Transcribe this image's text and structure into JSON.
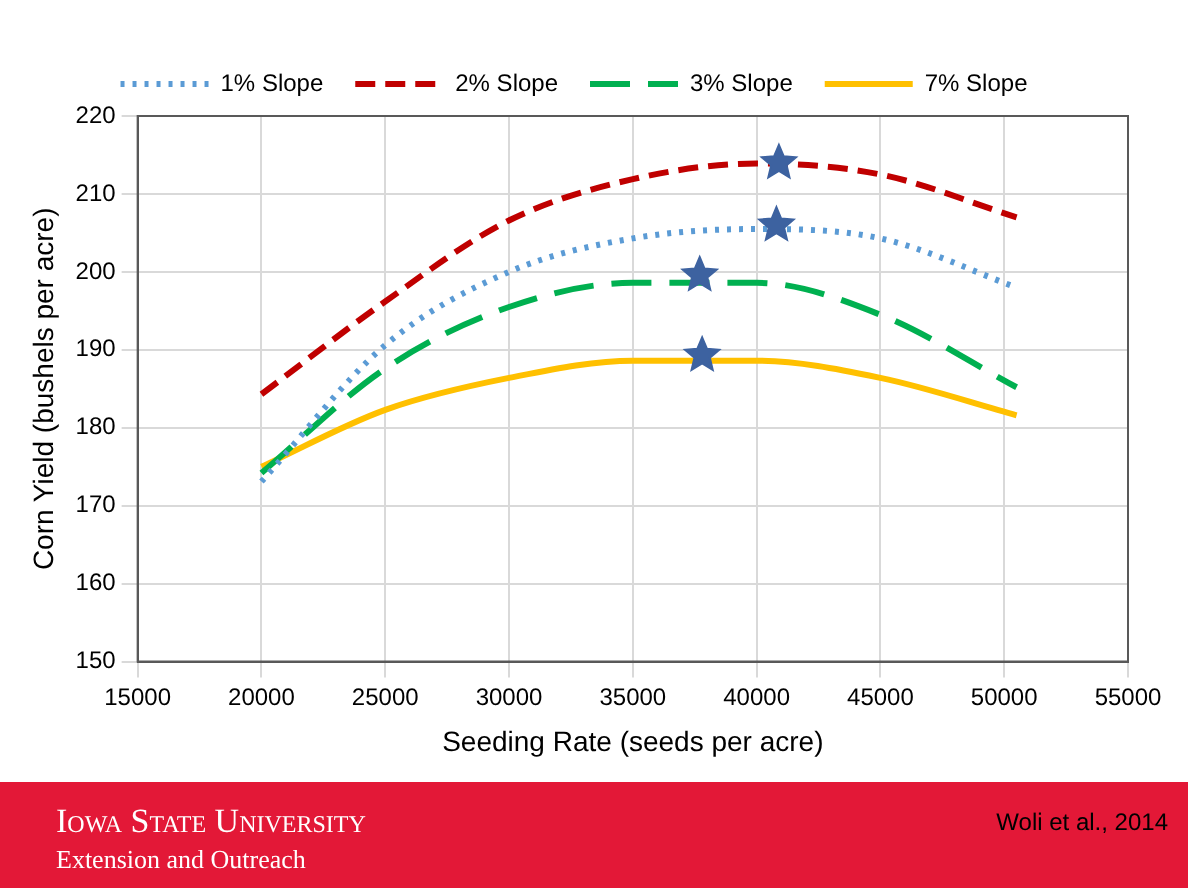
{
  "chart_data": {
    "type": "line",
    "xlabel": "Seeding Rate (seeds per acre)",
    "ylabel": "Corn Yield (bushels per acre)",
    "x": [
      20000,
      25000,
      30000,
      35000,
      40000,
      45000,
      50500
    ],
    "series": [
      {
        "name": "1% Slope",
        "color": "#5b9bd5",
        "line_style": "dotted",
        "values": [
          173.1,
          190.6,
          200,
          204.3,
          205.5,
          204.3,
          198
        ]
      },
      {
        "name": "2% Slope",
        "color": "#c00000",
        "line_style": "dashed",
        "values": [
          184.3,
          196.2,
          206.6,
          211.9,
          213.9,
          212.5,
          207
        ]
      },
      {
        "name": "3% Slope",
        "color": "#00b050",
        "line_style": "dashed",
        "values": [
          174.2,
          187.6,
          195.5,
          198.6,
          198.6,
          194.5,
          185.2
        ]
      },
      {
        "name": "7% Slope",
        "color": "#ffc000",
        "line_style": "solid",
        "values": [
          175,
          182.3,
          186.4,
          188.6,
          188.6,
          186.4,
          181.6
        ]
      },
      {
        "type": "scatter",
        "color": "#3d62a0",
        "marker": "star",
        "x": [
          40900,
          40800,
          37700,
          37800
        ],
        "values": [
          214,
          206,
          199.6,
          189.3
        ]
      }
    ],
    "xlim": [
      15000,
      55000
    ],
    "xticks": [
      15000,
      20000,
      25000,
      30000,
      35000,
      40000,
      45000,
      50000,
      55000
    ],
    "ylim": [
      150,
      220
    ],
    "yticks": [
      150,
      160,
      170,
      180,
      190,
      200,
      210,
      220
    ],
    "grid": true,
    "legend": "top",
    "marker": "none",
    "annotations": [
      "Iowa State University",
      "Extension and Outreach",
      "Woli et al., 2014"
    ]
  }
}
